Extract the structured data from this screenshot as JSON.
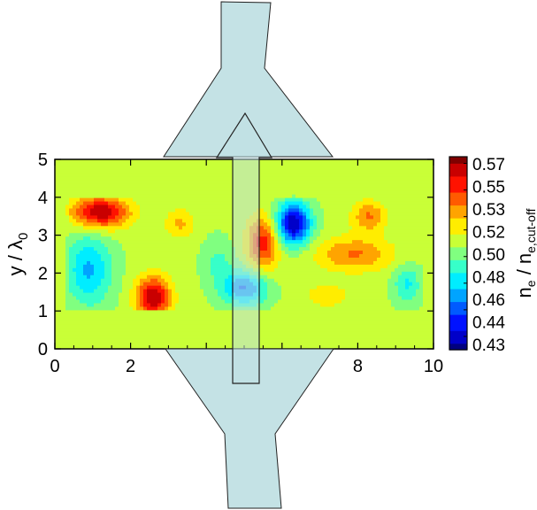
{
  "chart_data": {
    "type": "heatmap",
    "title": "",
    "xlabel": "",
    "ylabel_main": "y / λ",
    "ylabel_sub": "0",
    "xlim": [
      0,
      10
    ],
    "ylim": [
      0,
      5
    ],
    "x_ticks": [
      0,
      2,
      4,
      6,
      8,
      10
    ],
    "x_tick_labels": [
      "0",
      "2",
      "",
      "",
      "8",
      "10"
    ],
    "y_ticks": [
      0,
      1,
      2,
      3,
      4,
      5
    ],
    "y_tick_labels": [
      "0",
      "1",
      "2",
      "3",
      "4",
      "5"
    ],
    "background_value": 0.51,
    "turbulent_region": {
      "x": [
        0.25,
        9.8
      ],
      "y": [
        0.95,
        4.05
      ]
    },
    "blobs": [
      {
        "x": 1.2,
        "y": 3.6,
        "sx": 0.75,
        "sy": 0.42,
        "amp": 0.06
      },
      {
        "x": 0.9,
        "y": 2.1,
        "sx": 0.6,
        "sy": 0.95,
        "amp": -0.035
      },
      {
        "x": 2.6,
        "y": 1.35,
        "sx": 0.45,
        "sy": 0.55,
        "amp": 0.06
      },
      {
        "x": 5.0,
        "y": 1.6,
        "sx": 0.6,
        "sy": 0.45,
        "amp": -0.045
      },
      {
        "x": 5.5,
        "y": 2.8,
        "sx": 0.42,
        "sy": 0.7,
        "amp": 0.045
      },
      {
        "x": 6.3,
        "y": 3.3,
        "sx": 0.45,
        "sy": 0.55,
        "amp": -0.075
      },
      {
        "x": 7.9,
        "y": 2.5,
        "sx": 1.0,
        "sy": 0.45,
        "amp": 0.03
      },
      {
        "x": 8.3,
        "y": 3.5,
        "sx": 0.45,
        "sy": 0.4,
        "amp": 0.03
      },
      {
        "x": 3.3,
        "y": 3.3,
        "sx": 0.4,
        "sy": 0.4,
        "amp": 0.02
      },
      {
        "x": 9.3,
        "y": 1.7,
        "sx": 0.35,
        "sy": 0.5,
        "amp": -0.025
      },
      {
        "x": 4.3,
        "y": 2.3,
        "sx": 0.4,
        "sy": 0.6,
        "amp": -0.015
      },
      {
        "x": 7.2,
        "y": 1.4,
        "sx": 0.55,
        "sy": 0.3,
        "amp": 0.018
      }
    ],
    "colorbar": {
      "label_main": "n",
      "label_sub_e": "e",
      "label_sep": " / n",
      "label_sub_cutoff": "e,cut-off",
      "range": [
        0.43,
        0.575
      ],
      "ticks": [
        0.57,
        0.55,
        0.53,
        0.52,
        0.5,
        0.48,
        0.46,
        0.44,
        0.43
      ],
      "tick_labels": [
        "0.57",
        "0.55",
        "0.53",
        "0.52",
        "0.50",
        "0.48",
        "0.46",
        "0.44",
        "0.43"
      ],
      "colors": [
        "#000080",
        "#0000ff",
        "#0080ff",
        "#00ffff",
        "#80ff80",
        "#ffff00",
        "#ff8000",
        "#ff0000",
        "#800000"
      ]
    },
    "overlay": {
      "shape_color": "#bfe0e3",
      "shape_stroke": "#222222"
    }
  }
}
